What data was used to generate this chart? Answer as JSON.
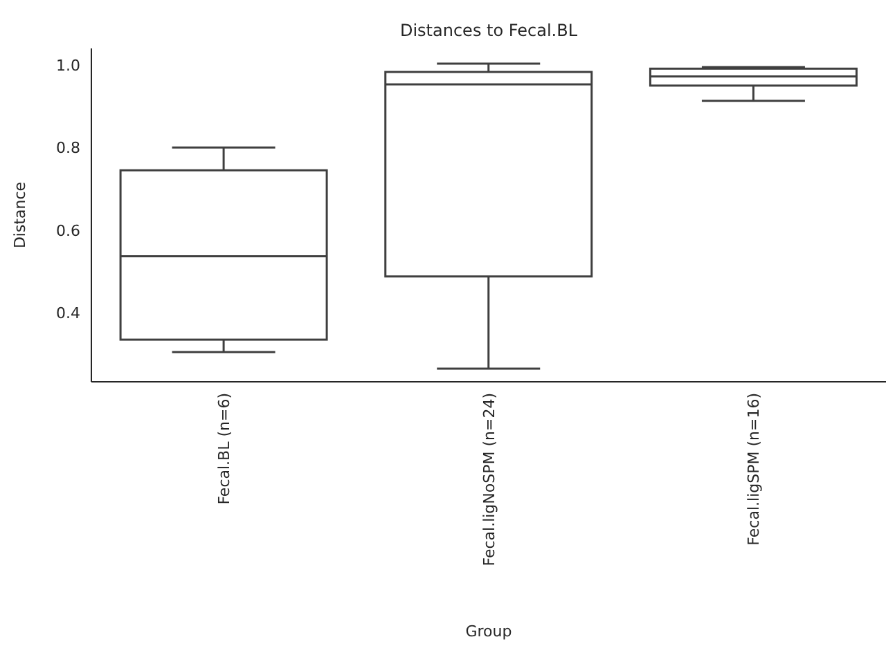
{
  "chart_data": {
    "type": "box",
    "title": "Distances to Fecal.BL",
    "xlabel": "Group",
    "ylabel": "Distance",
    "categories": [
      "Fecal.BL (n=6)",
      "Fecal.ligNoSPM (n=24)",
      "Fecal.ligSPM (n=16)"
    ],
    "boxes": [
      {
        "low": 0.305,
        "q1": 0.335,
        "median": 0.537,
        "q3": 0.745,
        "high": 0.8
      },
      {
        "low": 0.265,
        "q1": 0.488,
        "median": 0.953,
        "q3": 0.983,
        "high": 1.003
      },
      {
        "low": 0.913,
        "q1": 0.95,
        "median": 0.972,
        "q3": 0.991,
        "high": 0.995
      }
    ],
    "color": "#3f3f3f",
    "ylim": [
      0.233,
      1.04
    ],
    "yticks": [
      0.4,
      0.6,
      0.8,
      {
        "value": 1,
        "label": "1.0"
      }
    ]
  }
}
